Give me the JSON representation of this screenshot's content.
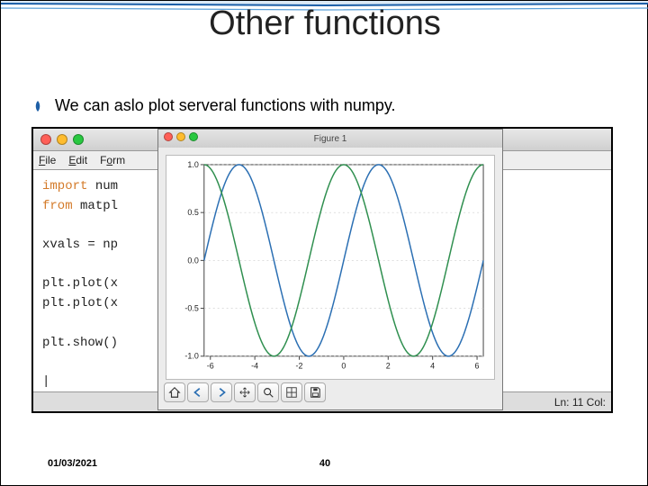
{
  "slide": {
    "title": "Other functions",
    "bullet": "We can aslo plot serveral functions with numpy.",
    "date": "01/03/2021",
    "page": "40"
  },
  "wave": {
    "stroke_outer": "#1b5fa8",
    "stroke_inner": "#5aa0d8",
    "fill": "#dceaf6"
  },
  "bullet_icon": {
    "fill": "#1e5fa6"
  },
  "editor": {
    "traffic": {
      "red": "#ff5f57",
      "yellow": "#febc2e",
      "green": "#28c840"
    },
    "menus": {
      "file": "File",
      "edit": "Edit",
      "format": "Form"
    },
    "code": {
      "l1a": "import",
      "l1b": " num",
      "l2a": "from",
      "l2b": " matpl",
      "blank1": "",
      "l3": "xvals = np",
      "blank2": "",
      "l4": "plt.plot(x",
      "l5": "plt.plot(x",
      "blank3": "",
      "l6": "plt.show()",
      "blank4": "",
      "cursor": "|"
    },
    "status_ln": "Ln: 11",
    "status_col": "Col:"
  },
  "figure": {
    "title": "Figure 1",
    "traffic": {
      "red": "#ff5f57",
      "yellow": "#febc2e",
      "green": "#28c840"
    },
    "plot": {
      "type": "line",
      "background_color": "#ffffff",
      "grid_color": "#cccccc",
      "axis_color": "#444444",
      "tick_fontsize": 9,
      "xlim": [
        -6.283,
        6.283
      ],
      "ylim": [
        -1,
        1
      ],
      "xticks": [
        -6,
        -4,
        -2,
        0,
        2,
        4,
        6
      ],
      "yticks": [
        -1.0,
        -0.5,
        0.0,
        0.5,
        1.0
      ],
      "ytick_labels": [
        "-1.0",
        "-0.5",
        "0.0",
        "0.5",
        "1.0"
      ],
      "series": [
        {
          "name": "sin",
          "color": "#2b6fb3",
          "width": 1.5
        },
        {
          "name": "cos",
          "color": "#2f8f4f",
          "width": 1.5
        }
      ],
      "samples": 180
    },
    "tools": [
      {
        "name": "home-icon"
      },
      {
        "name": "back-icon"
      },
      {
        "name": "forward-icon"
      },
      {
        "name": "pan-icon"
      },
      {
        "name": "zoom-icon"
      },
      {
        "name": "subplot-icon"
      },
      {
        "name": "save-icon"
      }
    ]
  }
}
